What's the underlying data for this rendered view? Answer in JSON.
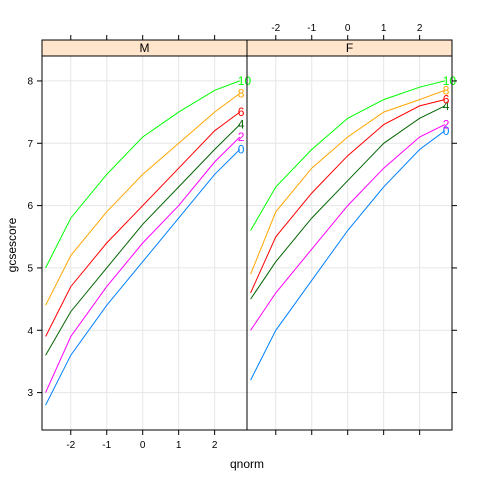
{
  "chart_data": {
    "type": "line",
    "xlabel": "qnorm",
    "ylabel": "gcsescore",
    "xlim": [
      -2.8,
      2.9
    ],
    "ylim": [
      2.4,
      8.4
    ],
    "x_ticks": [
      -2,
      -1,
      0,
      1,
      2
    ],
    "y_ticks": [
      3,
      4,
      5,
      6,
      7,
      8
    ],
    "grid": true,
    "panels": [
      {
        "strip": "M",
        "series": [
          {
            "name": "0",
            "color": "#0080ff",
            "x": [
              -2.7,
              -2.0,
              -1.0,
              0.0,
              1.0,
              2.0,
              2.7
            ],
            "y": [
              2.8,
              3.6,
              4.4,
              5.1,
              5.8,
              6.5,
              6.9
            ]
          },
          {
            "name": "2",
            "color": "#ff00ff",
            "x": [
              -2.7,
              -2.0,
              -1.0,
              0.0,
              1.0,
              2.0,
              2.7
            ],
            "y": [
              3.0,
              3.9,
              4.7,
              5.4,
              6.0,
              6.7,
              7.1
            ]
          },
          {
            "name": "4",
            "color": "#006400",
            "x": [
              -2.7,
              -2.0,
              -1.0,
              0.0,
              1.0,
              2.0,
              2.7
            ],
            "y": [
              3.6,
              4.3,
              5.0,
              5.7,
              6.3,
              6.9,
              7.3
            ]
          },
          {
            "name": "6",
            "color": "#ff0000",
            "x": [
              -2.7,
              -2.0,
              -1.0,
              0.0,
              1.0,
              2.0,
              2.7
            ],
            "y": [
              3.9,
              4.7,
              5.4,
              6.0,
              6.6,
              7.2,
              7.5
            ]
          },
          {
            "name": "8",
            "color": "#ffa500",
            "x": [
              -2.7,
              -2.0,
              -1.0,
              0.0,
              1.0,
              2.0,
              2.7
            ],
            "y": [
              4.4,
              5.2,
              5.9,
              6.5,
              7.0,
              7.5,
              7.8
            ]
          },
          {
            "name": "10",
            "color": "#00ff00",
            "x": [
              -2.7,
              -2.0,
              -1.0,
              0.0,
              1.0,
              2.0,
              2.7
            ],
            "y": [
              5.0,
              5.8,
              6.5,
              7.1,
              7.5,
              7.85,
              8.0
            ]
          }
        ]
      },
      {
        "strip": "F",
        "series": [
          {
            "name": "0",
            "color": "#0080ff",
            "x": [
              -2.7,
              -2.0,
              -1.0,
              0.0,
              1.0,
              2.0,
              2.7
            ],
            "y": [
              3.2,
              4.0,
              4.8,
              5.6,
              6.3,
              6.9,
              7.2
            ]
          },
          {
            "name": "2",
            "color": "#ff00ff",
            "x": [
              -2.7,
              -2.0,
              -1.0,
              0.0,
              1.0,
              2.0,
              2.7
            ],
            "y": [
              4.0,
              4.6,
              5.3,
              6.0,
              6.6,
              7.1,
              7.3
            ]
          },
          {
            "name": "4",
            "color": "#006400",
            "x": [
              -2.7,
              -2.0,
              -1.0,
              0.0,
              1.0,
              2.0,
              2.7
            ],
            "y": [
              4.5,
              5.1,
              5.8,
              6.4,
              7.0,
              7.4,
              7.6
            ]
          },
          {
            "name": "6",
            "color": "#ff0000",
            "x": [
              -2.7,
              -2.0,
              -1.0,
              0.0,
              1.0,
              2.0,
              2.7
            ],
            "y": [
              4.6,
              5.5,
              6.2,
              6.8,
              7.3,
              7.6,
              7.7
            ]
          },
          {
            "name": "8",
            "color": "#ffa500",
            "x": [
              -2.7,
              -2.0,
              -1.0,
              0.0,
              1.0,
              2.0,
              2.7
            ],
            "y": [
              4.9,
              5.9,
              6.6,
              7.1,
              7.5,
              7.7,
              7.85
            ]
          },
          {
            "name": "10",
            "color": "#00ff00",
            "x": [
              -2.7,
              -2.0,
              -1.0,
              0.0,
              1.0,
              2.0,
              2.7
            ],
            "y": [
              5.6,
              6.3,
              6.9,
              7.4,
              7.7,
              7.9,
              8.0
            ]
          }
        ]
      }
    ],
    "colors": {
      "strip_fill": "#ffe5cc",
      "grid": "#e6e6e6"
    }
  }
}
